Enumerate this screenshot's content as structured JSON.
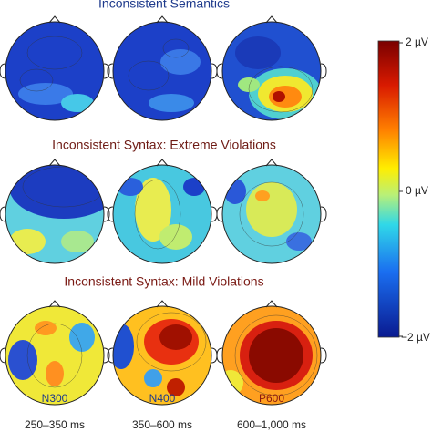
{
  "rows": [
    {
      "title": "Inconsistent Semantics"
    },
    {
      "title": "Inconsistent Syntax: Extreme Violations"
    },
    {
      "title": "Inconsistent Syntax: Mild Violations"
    }
  ],
  "columns": [
    {
      "component": "N300",
      "window": "250–350 ms"
    },
    {
      "component": "N400",
      "window": "350–600 ms"
    },
    {
      "component": "P600",
      "window": "600–1,000 ms"
    }
  ],
  "colorbar": {
    "ticks": [
      "2 µV",
      "0 µV",
      "−2 µV"
    ]
  }
}
